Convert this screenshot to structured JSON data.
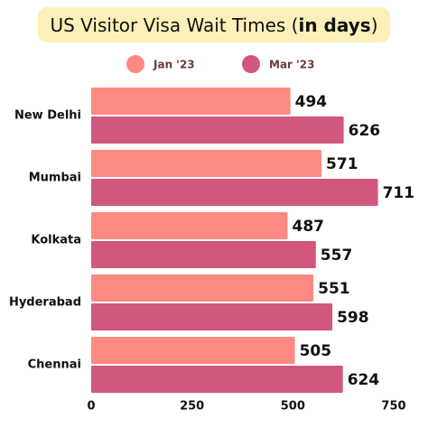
{
  "chart_data": {
    "type": "hbar",
    "title": [
      "US Visitor Visa Wait Times (",
      "in days",
      ")"
    ],
    "categories": [
      "New Delhi",
      "Mumbai",
      "Kolkata",
      "Hyderabad",
      "Chennai"
    ],
    "series": [
      {
        "name": "Jan '23",
        "color": "#fd8a80",
        "values": [
          494,
          571,
          487,
          551,
          505
        ]
      },
      {
        "name": "Mar '23",
        "color": "#d2577c",
        "values": [
          626,
          711,
          557,
          598,
          624
        ]
      }
    ],
    "xlim": [
      0,
      750
    ],
    "xticks": [
      0,
      250,
      500,
      750
    ],
    "grid": false,
    "legend": "top"
  }
}
